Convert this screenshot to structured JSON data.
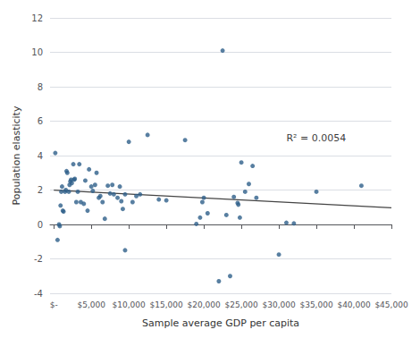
{
  "chart_data": {
    "type": "scatter",
    "xlabel": "Sample average GDP per capita",
    "ylabel": "Population elasticity",
    "series": [
      {
        "type": "scatter",
        "color": "#2e5f8a",
        "x": [
          200,
          500,
          700,
          800,
          900,
          1000,
          1100,
          1200,
          1300,
          1500,
          1600,
          1700,
          1800,
          2000,
          2100,
          2200,
          2300,
          2400,
          2600,
          2700,
          2800,
          3000,
          3200,
          3400,
          3600,
          4000,
          4200,
          4500,
          4700,
          5000,
          5200,
          5500,
          5700,
          6000,
          6200,
          6500,
          6800,
          7200,
          7500,
          7800,
          8000,
          8500,
          8800,
          9000,
          9200,
          9500,
          10000,
          10500,
          11000,
          11500,
          12500,
          9500,
          14000,
          15000,
          17500,
          19000,
          19500,
          19800,
          20000,
          20500,
          22500,
          23000,
          22000,
          23500,
          24000,
          24500,
          24600,
          24800,
          25000,
          25500,
          26000,
          26500,
          27000,
          30000,
          31000,
          32000,
          35000,
          41000
        ],
        "values": [
          4.15,
          -0.9,
          0.0,
          -0.1,
          1.1,
          1.9,
          2.2,
          0.8,
          0.75,
          1.9,
          2.0,
          3.1,
          3.0,
          1.9,
          2.3,
          2.5,
          2.6,
          2.4,
          3.5,
          2.6,
          2.65,
          1.3,
          1.9,
          3.5,
          1.3,
          1.2,
          2.55,
          0.8,
          3.2,
          2.2,
          1.95,
          2.3,
          3.0,
          1.55,
          1.65,
          1.3,
          0.33,
          2.25,
          1.8,
          2.3,
          1.75,
          1.55,
          2.2,
          1.35,
          0.9,
          1.75,
          4.8,
          1.3,
          1.65,
          1.75,
          5.2,
          -1.5,
          1.45,
          1.4,
          4.9,
          0.03,
          0.4,
          1.3,
          1.55,
          0.65,
          10.1,
          0.55,
          -3.3,
          -3.0,
          1.6,
          1.25,
          1.15,
          0.4,
          3.6,
          1.9,
          2.35,
          3.4,
          1.55,
          -1.75,
          0.1,
          0.06,
          1.9,
          2.25
        ]
      },
      {
        "type": "line",
        "color": "#444444",
        "x": [
          0,
          45000
        ],
        "values": [
          1.991,
          0.9697
        ]
      }
    ],
    "annotation": {
      "text": "R² = 0.0054",
      "x": 31000,
      "y": 5.0
    },
    "xlim": [
      -500,
      45000
    ],
    "xticks": [
      {
        "value": 0,
        "label": "$-"
      },
      {
        "value": 5000,
        "label": "$5,000"
      },
      {
        "value": 10000,
        "label": "$10,000"
      },
      {
        "value": 15000,
        "label": "$15,000"
      },
      {
        "value": 20000,
        "label": "$20,000"
      },
      {
        "value": 25000,
        "label": "$25,000"
      },
      {
        "value": 30000,
        "label": "$30,000"
      },
      {
        "value": 35000,
        "label": "$35,000"
      },
      {
        "value": 40000,
        "label": "$40,000"
      },
      {
        "value": 45000,
        "label": "$45,000"
      }
    ],
    "ylim": [
      -4,
      12
    ],
    "yticks": [
      -4,
      -2,
      0,
      2,
      4,
      6,
      8,
      10,
      12
    ],
    "grid": true
  }
}
